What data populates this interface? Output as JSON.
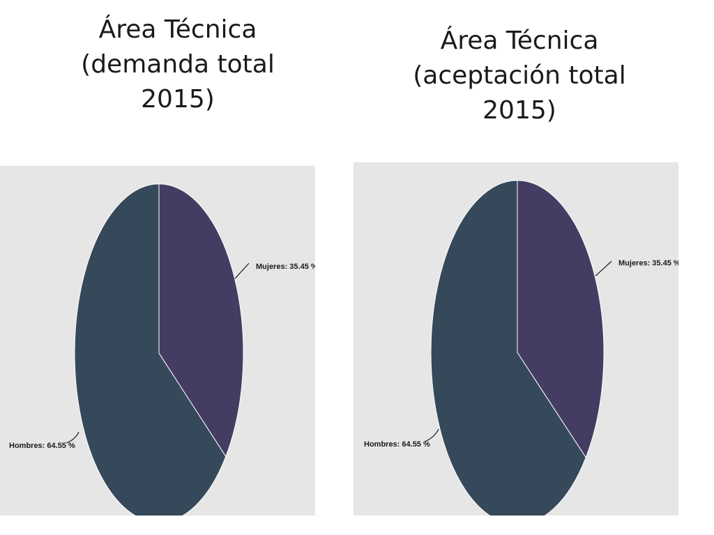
{
  "chart_data": [
    {
      "type": "pie",
      "title": "Área Técnica\n(demanda total\n2015)",
      "slices": [
        {
          "label": "Mujeres: 35.45 %",
          "value": 35.45,
          "color": "#453c63"
        },
        {
          "label": "Hombres: 64.55 %",
          "value": 64.55,
          "color": "#36495a"
        }
      ]
    },
    {
      "type": "pie",
      "title": "Área Técnica\n(aceptación total\n2015)",
      "slices": [
        {
          "label": "Mujeres: 35.45 %",
          "value": 35.45,
          "color": "#453c63"
        },
        {
          "label": "Hombres: 64.55 %",
          "value": 64.55,
          "color": "#36495a"
        }
      ]
    }
  ]
}
